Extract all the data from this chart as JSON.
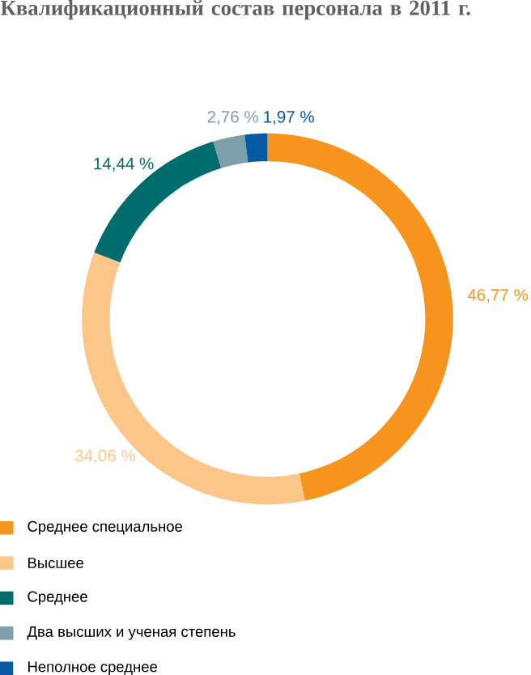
{
  "chart_data": {
    "type": "donut",
    "title": "Квалификационный состав персонала в 2011 г.",
    "categories": [
      "Среднее специальное",
      "Высшее",
      "Среднее",
      "Два высших и ученая степень",
      "Неполное среднее"
    ],
    "values": [
      46.77,
      34.06,
      14.44,
      2.76,
      1.97
    ],
    "value_labels": [
      "46,77 %",
      "34,06 %",
      "14,44 %",
      "2,76 %",
      "1,97 %"
    ],
    "colors": [
      "#f7941d",
      "#fdc689",
      "#006c6e",
      "#7c9fab",
      "#0659a3"
    ],
    "legend": "bottom"
  }
}
